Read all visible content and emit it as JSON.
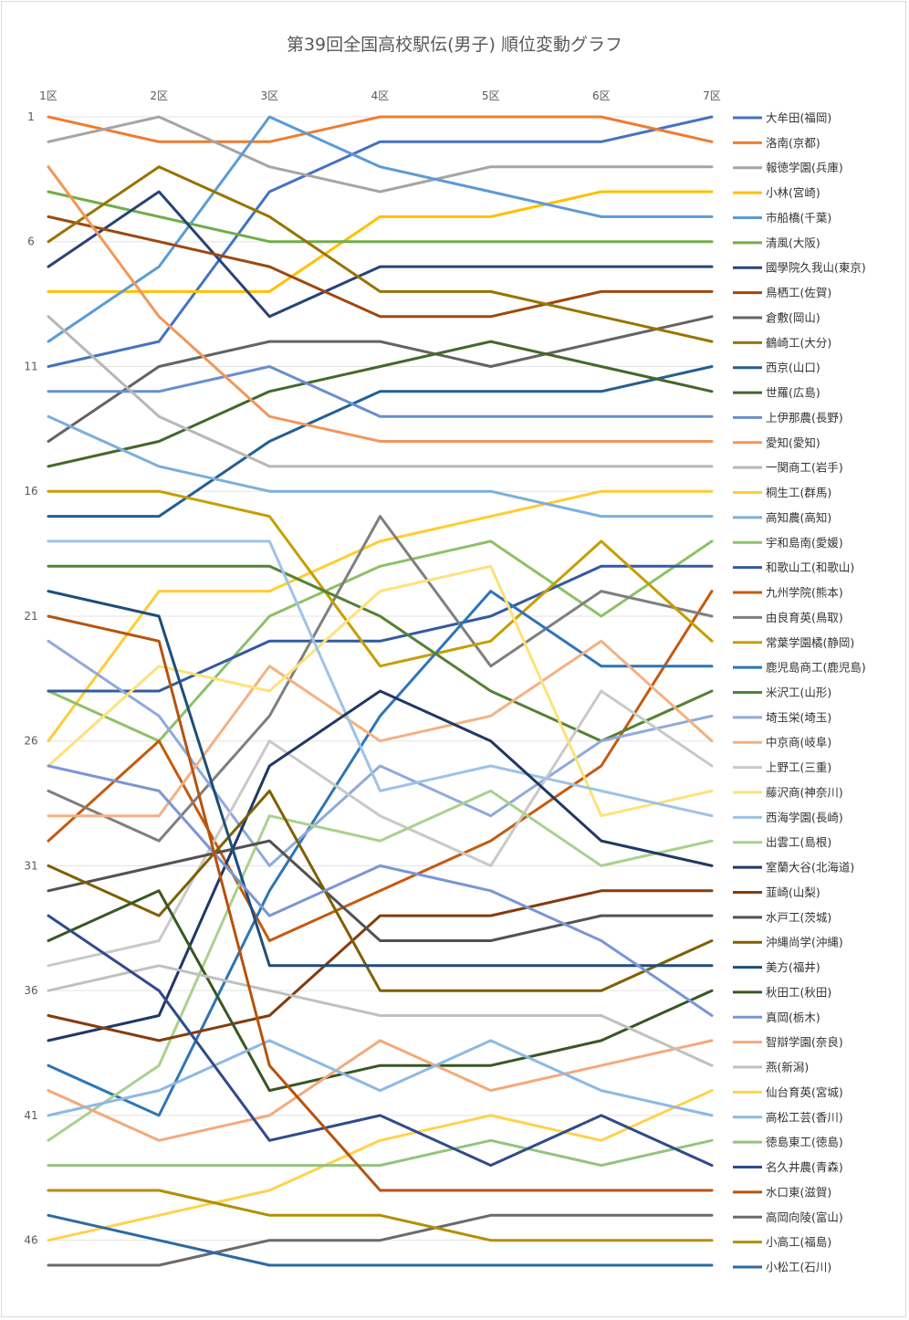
{
  "chart_data": {
    "type": "line",
    "title": "第39回全国高校駅伝(男子) 順位変動グラフ",
    "categories": [
      "1区",
      "2区",
      "3区",
      "4区",
      "5区",
      "6区",
      "7区"
    ],
    "y_ticks": [
      1,
      6,
      11,
      16,
      21,
      26,
      31,
      36,
      41,
      46
    ],
    "ylim": [
      1,
      47
    ],
    "y_reversed": true,
    "grid": true,
    "legend_position": "right",
    "series": [
      {
        "name": "大牟田(福岡)",
        "color": "#4472c4",
        "values": [
          11,
          10,
          4,
          2,
          2,
          2,
          1
        ]
      },
      {
        "name": "洛南(京都)",
        "color": "#ed7d31",
        "values": [
          1,
          2,
          2,
          1,
          1,
          1,
          2
        ]
      },
      {
        "name": "報徳学園(兵庫)",
        "color": "#a5a5a5",
        "values": [
          2,
          1,
          3,
          4,
          3,
          3,
          3
        ]
      },
      {
        "name": "小林(宮崎)",
        "color": "#ffc000",
        "values": [
          8,
          8,
          8,
          5,
          5,
          4,
          4
        ]
      },
      {
        "name": "市船橋(千葉)",
        "color": "#5b9bd5",
        "values": [
          10,
          7,
          1,
          3,
          4,
          5,
          5
        ]
      },
      {
        "name": "清風(大阪)",
        "color": "#70ad47",
        "values": [
          4,
          5,
          6,
          6,
          6,
          6,
          6
        ]
      },
      {
        "name": "國學院久我山(東京)",
        "color": "#264478",
        "values": [
          7,
          4,
          9,
          7,
          7,
          7,
          7
        ]
      },
      {
        "name": "鳥栖工(佐賀)",
        "color": "#9e480e",
        "values": [
          5,
          6,
          7,
          9,
          9,
          8,
          8
        ]
      },
      {
        "name": "倉敷(岡山)",
        "color": "#636363",
        "values": [
          14,
          11,
          10,
          10,
          11,
          10,
          9
        ]
      },
      {
        "name": "鶴崎工(大分)",
        "color": "#997300",
        "values": [
          6,
          3,
          5,
          8,
          8,
          9,
          10
        ]
      },
      {
        "name": "西京(山口)",
        "color": "#255e91",
        "values": [
          17,
          17,
          14,
          12,
          12,
          12,
          11
        ]
      },
      {
        "name": "世羅(広島)",
        "color": "#43682b",
        "values": [
          15,
          14,
          12,
          11,
          10,
          11,
          12
        ]
      },
      {
        "name": "上伊那農(長野)",
        "color": "#698ed0",
        "values": [
          12,
          12,
          11,
          13,
          13,
          13,
          13
        ]
      },
      {
        "name": "愛知(愛知)",
        "color": "#f1975a",
        "values": [
          3,
          9,
          13,
          14,
          14,
          14,
          14
        ]
      },
      {
        "name": "一関商工(岩手)",
        "color": "#b7b7b7",
        "values": [
          9,
          13,
          15,
          15,
          15,
          15,
          15
        ]
      },
      {
        "name": "桐生工(群馬)",
        "color": "#ffcd33",
        "values": [
          26,
          20,
          20,
          18,
          17,
          16,
          16
        ]
      },
      {
        "name": "高知農(高知)",
        "color": "#7cafdd",
        "values": [
          13,
          15,
          16,
          16,
          16,
          17,
          17
        ]
      },
      {
        "name": "宇和島南(愛媛)",
        "color": "#8cc168",
        "values": [
          24,
          26,
          21,
          19,
          18,
          21,
          18
        ]
      },
      {
        "name": "和歌山工(和歌山)",
        "color": "#335aa1",
        "values": [
          24,
          24,
          22,
          22,
          21,
          19,
          19
        ]
      },
      {
        "name": "九州学院(熊本)",
        "color": "#c55a11",
        "values": [
          30,
          26,
          34,
          32,
          30,
          27,
          20
        ]
      },
      {
        "name": "由良育英(鳥取)",
        "color": "#7f7f7f",
        "values": [
          28,
          30,
          25,
          17,
          23,
          20,
          21
        ]
      },
      {
        "name": "常葉学園橘(静岡)",
        "color": "#c59e00",
        "values": [
          16,
          16,
          17,
          23,
          22,
          18,
          22
        ]
      },
      {
        "name": "鹿児島商工(鹿児島)",
        "color": "#2e75b6",
        "values": [
          39,
          41,
          32,
          25,
          20,
          23,
          23
        ]
      },
      {
        "name": "米沢工(山形)",
        "color": "#548235",
        "values": [
          19,
          19,
          19,
          21,
          24,
          26,
          24
        ]
      },
      {
        "name": "埼玉栄(埼玉)",
        "color": "#8faadc",
        "values": [
          22,
          25,
          31,
          27,
          29,
          26,
          25
        ]
      },
      {
        "name": "中京商(岐阜)",
        "color": "#f4b183",
        "values": [
          29,
          29,
          23,
          26,
          25,
          22,
          26
        ]
      },
      {
        "name": "上野工(三重)",
        "color": "#c9c9c9",
        "values": [
          35,
          34,
          26,
          29,
          31,
          24,
          27
        ]
      },
      {
        "name": "藤沢商(神奈川)",
        "color": "#ffe179",
        "values": [
          27,
          23,
          24,
          20,
          19,
          29,
          28
        ]
      },
      {
        "name": "西海学園(長崎)",
        "color": "#9dc3e6",
        "values": [
          18,
          18,
          18,
          28,
          27,
          28,
          29
        ]
      },
      {
        "name": "出雲工(島根)",
        "color": "#a9d18e",
        "values": [
          42,
          39,
          29,
          30,
          28,
          31,
          30
        ]
      },
      {
        "name": "室蘭大谷(北海道)",
        "color": "#203864",
        "values": [
          38,
          37,
          27,
          24,
          26,
          30,
          31
        ]
      },
      {
        "name": "韮崎(山梨)",
        "color": "#843c0c",
        "values": [
          37,
          38,
          37,
          33,
          33,
          32,
          32
        ]
      },
      {
        "name": "水戸工(茨城)",
        "color": "#525252",
        "values": [
          32,
          31,
          30,
          34,
          34,
          33,
          33
        ]
      },
      {
        "name": "沖縄尚学(沖縄)",
        "color": "#7f6000",
        "values": [
          31,
          33,
          28,
          36,
          36,
          36,
          34
        ]
      },
      {
        "name": "美方(福井)",
        "color": "#1f4e79",
        "values": [
          20,
          21,
          35,
          35,
          35,
          35,
          35
        ]
      },
      {
        "name": "秋田工(秋田)",
        "color": "#385723",
        "values": [
          34,
          32,
          40,
          39,
          39,
          38,
          36
        ]
      },
      {
        "name": "真岡(栃木)",
        "color": "#7a96d4",
        "values": [
          27,
          28,
          33,
          31,
          32,
          34,
          37
        ]
      },
      {
        "name": "智辯学園(奈良)",
        "color": "#f4a97b",
        "values": [
          40,
          42,
          41,
          38,
          40,
          39,
          38
        ]
      },
      {
        "name": "燕(新潟)",
        "color": "#c0c0c0",
        "values": [
          36,
          35,
          36,
          37,
          37,
          37,
          39
        ]
      },
      {
        "name": "仙台育英(宮城)",
        "color": "#ffd24d",
        "values": [
          46,
          45,
          44,
          42,
          41,
          42,
          40
        ]
      },
      {
        "name": "高松工芸(香川)",
        "color": "#8db9e2",
        "values": [
          41,
          40,
          38,
          40,
          38,
          40,
          41
        ]
      },
      {
        "name": "徳島東工(徳島)",
        "color": "#93c47d",
        "values": [
          43,
          43,
          43,
          43,
          42,
          43,
          42
        ]
      },
      {
        "name": "名久井農(青森)",
        "color": "#2f4b8c",
        "values": [
          33,
          36,
          42,
          41,
          43,
          41,
          43
        ]
      },
      {
        "name": "水口東(滋賀)",
        "color": "#b5530f",
        "values": [
          21,
          22,
          39,
          44,
          44,
          44,
          44
        ]
      },
      {
        "name": "高岡向陵(富山)",
        "color": "#6a6a6a",
        "values": [
          47,
          47,
          46,
          46,
          45,
          45,
          45
        ]
      },
      {
        "name": "小高工(福島)",
        "color": "#b38f00",
        "values": [
          44,
          44,
          45,
          45,
          46,
          46,
          46
        ]
      },
      {
        "name": "小松工(石川)",
        "color": "#2b6aa3",
        "values": [
          45,
          46,
          47,
          47,
          47,
          47,
          47
        ]
      }
    ]
  }
}
